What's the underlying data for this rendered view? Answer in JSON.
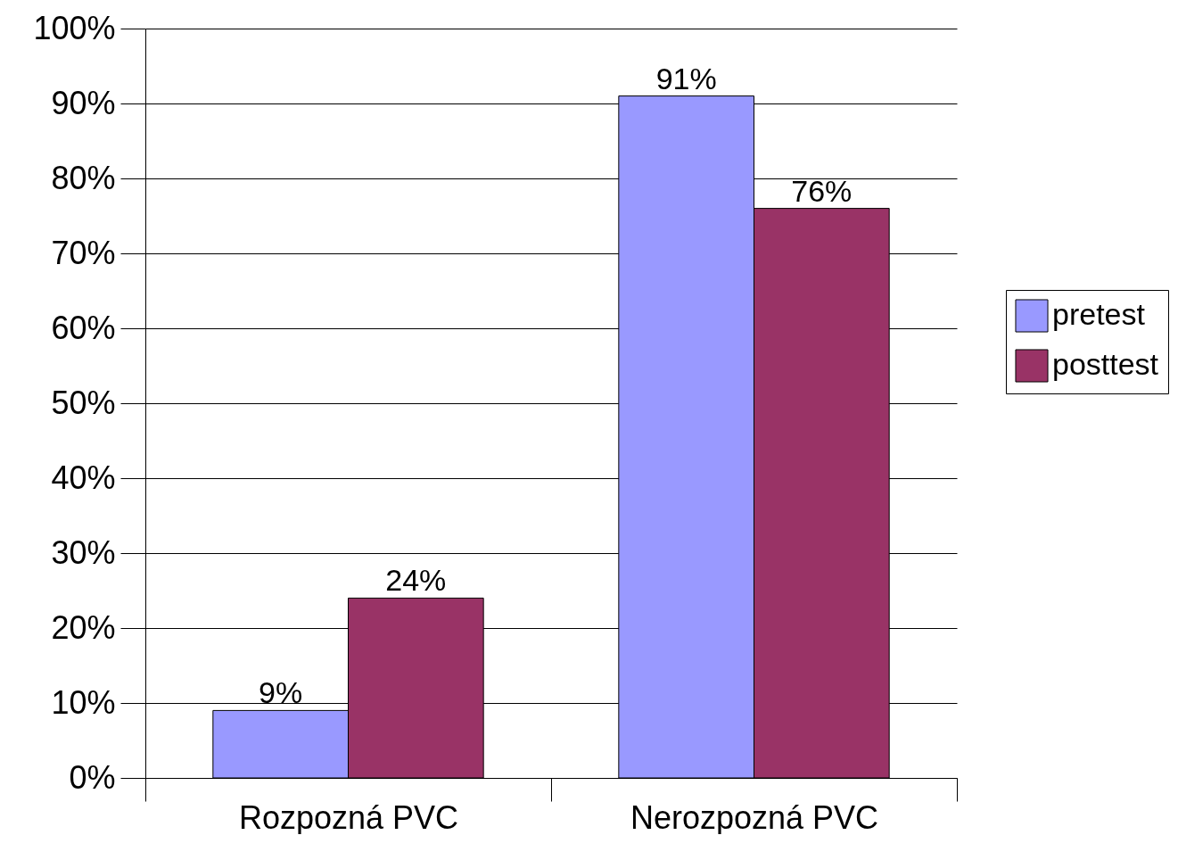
{
  "chart_data": {
    "type": "bar",
    "categories": [
      "Rozpozná PVC",
      "Nerozpozná PVC"
    ],
    "series": [
      {
        "name": "pretest",
        "color": "#9999ff",
        "values": [
          9,
          91
        ],
        "value_labels": [
          "9%",
          "91%"
        ]
      },
      {
        "name": "posttest",
        "color": "#993366",
        "values": [
          24,
          76
        ],
        "value_labels": [
          "24%",
          "76%"
        ]
      }
    ],
    "ylim": [
      0,
      100
    ],
    "yticks": [
      {
        "value": 0,
        "label": "0%"
      },
      {
        "value": 10,
        "label": "10%"
      },
      {
        "value": 20,
        "label": "20%"
      },
      {
        "value": 30,
        "label": "30%"
      },
      {
        "value": 40,
        "label": "40%"
      },
      {
        "value": 50,
        "label": "50%"
      },
      {
        "value": 60,
        "label": "60%"
      },
      {
        "value": 70,
        "label": "70%"
      },
      {
        "value": 80,
        "label": "80%"
      },
      {
        "value": 90,
        "label": "90%"
      },
      {
        "value": 100,
        "label": "100%"
      }
    ],
    "grid": "y",
    "legend": "right"
  }
}
